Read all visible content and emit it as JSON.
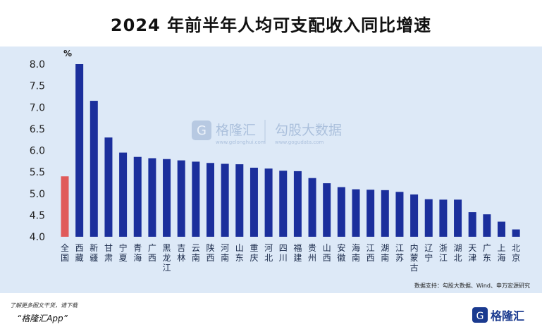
{
  "title": "2024 年前半年人均可支配收入同比增速",
  "source_label": "数据支持：勾股大数据、Wind、申万宏源研究",
  "watermark": {
    "brand_cn": "格隆汇",
    "brand_url": "www.gelonghui.com",
    "partner_cn": "勾股大数据",
    "partner_url": "www.gogudata.com"
  },
  "footer": {
    "note": "了解更多图文干货，请下载",
    "app": "“格隆汇App”",
    "logo_text": "格隆汇"
  },
  "colors": {
    "bar_primary": "#1b2f9c",
    "bar_highlight": "#e05a5a",
    "background": "#dde9f7"
  },
  "chart_data": {
    "type": "bar",
    "ylabel": "%",
    "ylim": [
      4.0,
      8.0
    ],
    "yticks": [
      "4.0",
      "4.5",
      "5.0",
      "5.5",
      "6.0",
      "6.5",
      "7.0",
      "7.5",
      "8.0"
    ],
    "grid": false,
    "highlight_categories": [
      "全国"
    ],
    "categories": [
      "全国",
      "西藏",
      "新疆",
      "甘肃",
      "宁夏",
      "青海",
      "广西",
      "黑龙江",
      "吉林",
      "云南",
      "陕西",
      "河南",
      "山东",
      "重庆",
      "河北",
      "四川",
      "福建",
      "贵州",
      "山西",
      "安徽",
      "海南",
      "江西",
      "湖南",
      "江苏",
      "内蒙古",
      "辽宁",
      "浙江",
      "湖北",
      "天津",
      "广东",
      "上海",
      "北京"
    ],
    "values": [
      5.4,
      8.0,
      7.15,
      6.3,
      5.95,
      5.85,
      5.82,
      5.8,
      5.77,
      5.74,
      5.71,
      5.69,
      5.68,
      5.6,
      5.58,
      5.53,
      5.52,
      5.36,
      5.24,
      5.15,
      5.1,
      5.09,
      5.08,
      5.04,
      4.98,
      4.87,
      4.86,
      4.86,
      4.57,
      4.52,
      4.35,
      4.17
    ]
  }
}
